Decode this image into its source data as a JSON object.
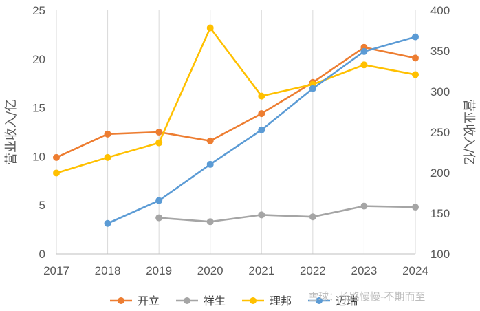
{
  "chart_data": {
    "type": "line",
    "categories": [
      "2017",
      "2018",
      "2019",
      "2020",
      "2021",
      "2022",
      "2023",
      "2024"
    ],
    "y_left": {
      "label": "营业收入/亿",
      "lim": [
        0,
        25
      ],
      "ticks": [
        "0",
        "5",
        "10",
        "15",
        "20",
        "25"
      ]
    },
    "y_right": {
      "label": "营业收入/亿",
      "lim": [
        100,
        400
      ],
      "ticks": [
        "100",
        "150",
        "200",
        "250",
        "300",
        "350",
        "400"
      ]
    },
    "grid": "vertical",
    "legend_position": "bottom",
    "series": [
      {
        "name": "开立",
        "color": "#ED7D31",
        "axis": "left",
        "values": [
          9.9,
          12.3,
          12.5,
          11.6,
          14.4,
          17.6,
          21.2,
          20.1
        ]
      },
      {
        "name": "祥生",
        "color": "#A5A5A5",
        "axis": "left",
        "values": [
          null,
          null,
          3.7,
          3.3,
          4.0,
          3.8,
          4.9,
          4.8
        ]
      },
      {
        "name": "理邦",
        "color": "#FFC000",
        "axis": "left",
        "values": [
          8.3,
          9.9,
          11.4,
          23.2,
          16.2,
          17.4,
          19.4,
          18.4
        ]
      },
      {
        "name": "迈瑞",
        "color": "#5B9BD5",
        "axis": "right",
        "values": [
          null,
          137.5,
          165.6,
          210.3,
          252.7,
          303.7,
          349.3,
          367.3
        ]
      }
    ]
  },
  "watermark": "雪球：长路慢慢-不期而至"
}
